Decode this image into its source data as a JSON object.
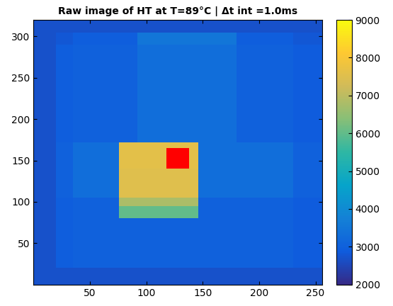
{
  "chart_data": {
    "type": "heatmap",
    "title": "Raw image of HT at T=89°C | Δt int =1.0ms",
    "xlim": [
      0,
      256
    ],
    "ylim": [
      0,
      320
    ],
    "xticks": [
      50,
      100,
      150,
      200,
      250
    ],
    "yticks": [
      50,
      100,
      150,
      200,
      250,
      300
    ],
    "x_edges": [
      0,
      20,
      35,
      76,
      92,
      118,
      138,
      146,
      180,
      230,
      256
    ],
    "y_edges": [
      0,
      20,
      80,
      95,
      105,
      140,
      165,
      172,
      195,
      290,
      305,
      320
    ],
    "cells": [
      [
        2700,
        2700,
        2700,
        2700,
        2700,
        2700,
        2700,
        2700,
        2700,
        2700
      ],
      [
        2700,
        2950,
        3000,
        3000,
        3000,
        3000,
        3000,
        3000,
        3000,
        2900
      ],
      [
        2700,
        2950,
        3000,
        6000,
        6000,
        6000,
        6000,
        3000,
        3000,
        2900
      ],
      [
        2700,
        2950,
        3000,
        6800,
        6800,
        6800,
        6800,
        3000,
        3000,
        2900
      ],
      [
        2700,
        3000,
        3300,
        7500,
        7500,
        7500,
        7500,
        3300,
        3300,
        3000
      ],
      [
        2700,
        3000,
        3300,
        7600,
        7600,
        9500,
        7600,
        3300,
        3300,
        3000
      ],
      [
        2700,
        3000,
        3300,
        7600,
        7600,
        7600,
        7600,
        3300,
        3300,
        3000
      ],
      [
        2700,
        2950,
        3000,
        3000,
        3300,
        3300,
        3300,
        3300,
        3000,
        2900
      ],
      [
        2700,
        2950,
        3000,
        3000,
        3300,
        3300,
        3300,
        3300,
        3000,
        2900
      ],
      [
        2700,
        2800,
        2950,
        2950,
        3500,
        3500,
        3500,
        3500,
        2950,
        2800
      ],
      [
        2700,
        2700,
        2700,
        2700,
        2700,
        2700,
        2700,
        2700,
        2700,
        2700
      ]
    ],
    "colorbar_range": [
      2000,
      9000
    ],
    "colorbar_ticks": [
      2000,
      3000,
      4000,
      5000,
      6000,
      7000,
      8000,
      9000
    ]
  }
}
